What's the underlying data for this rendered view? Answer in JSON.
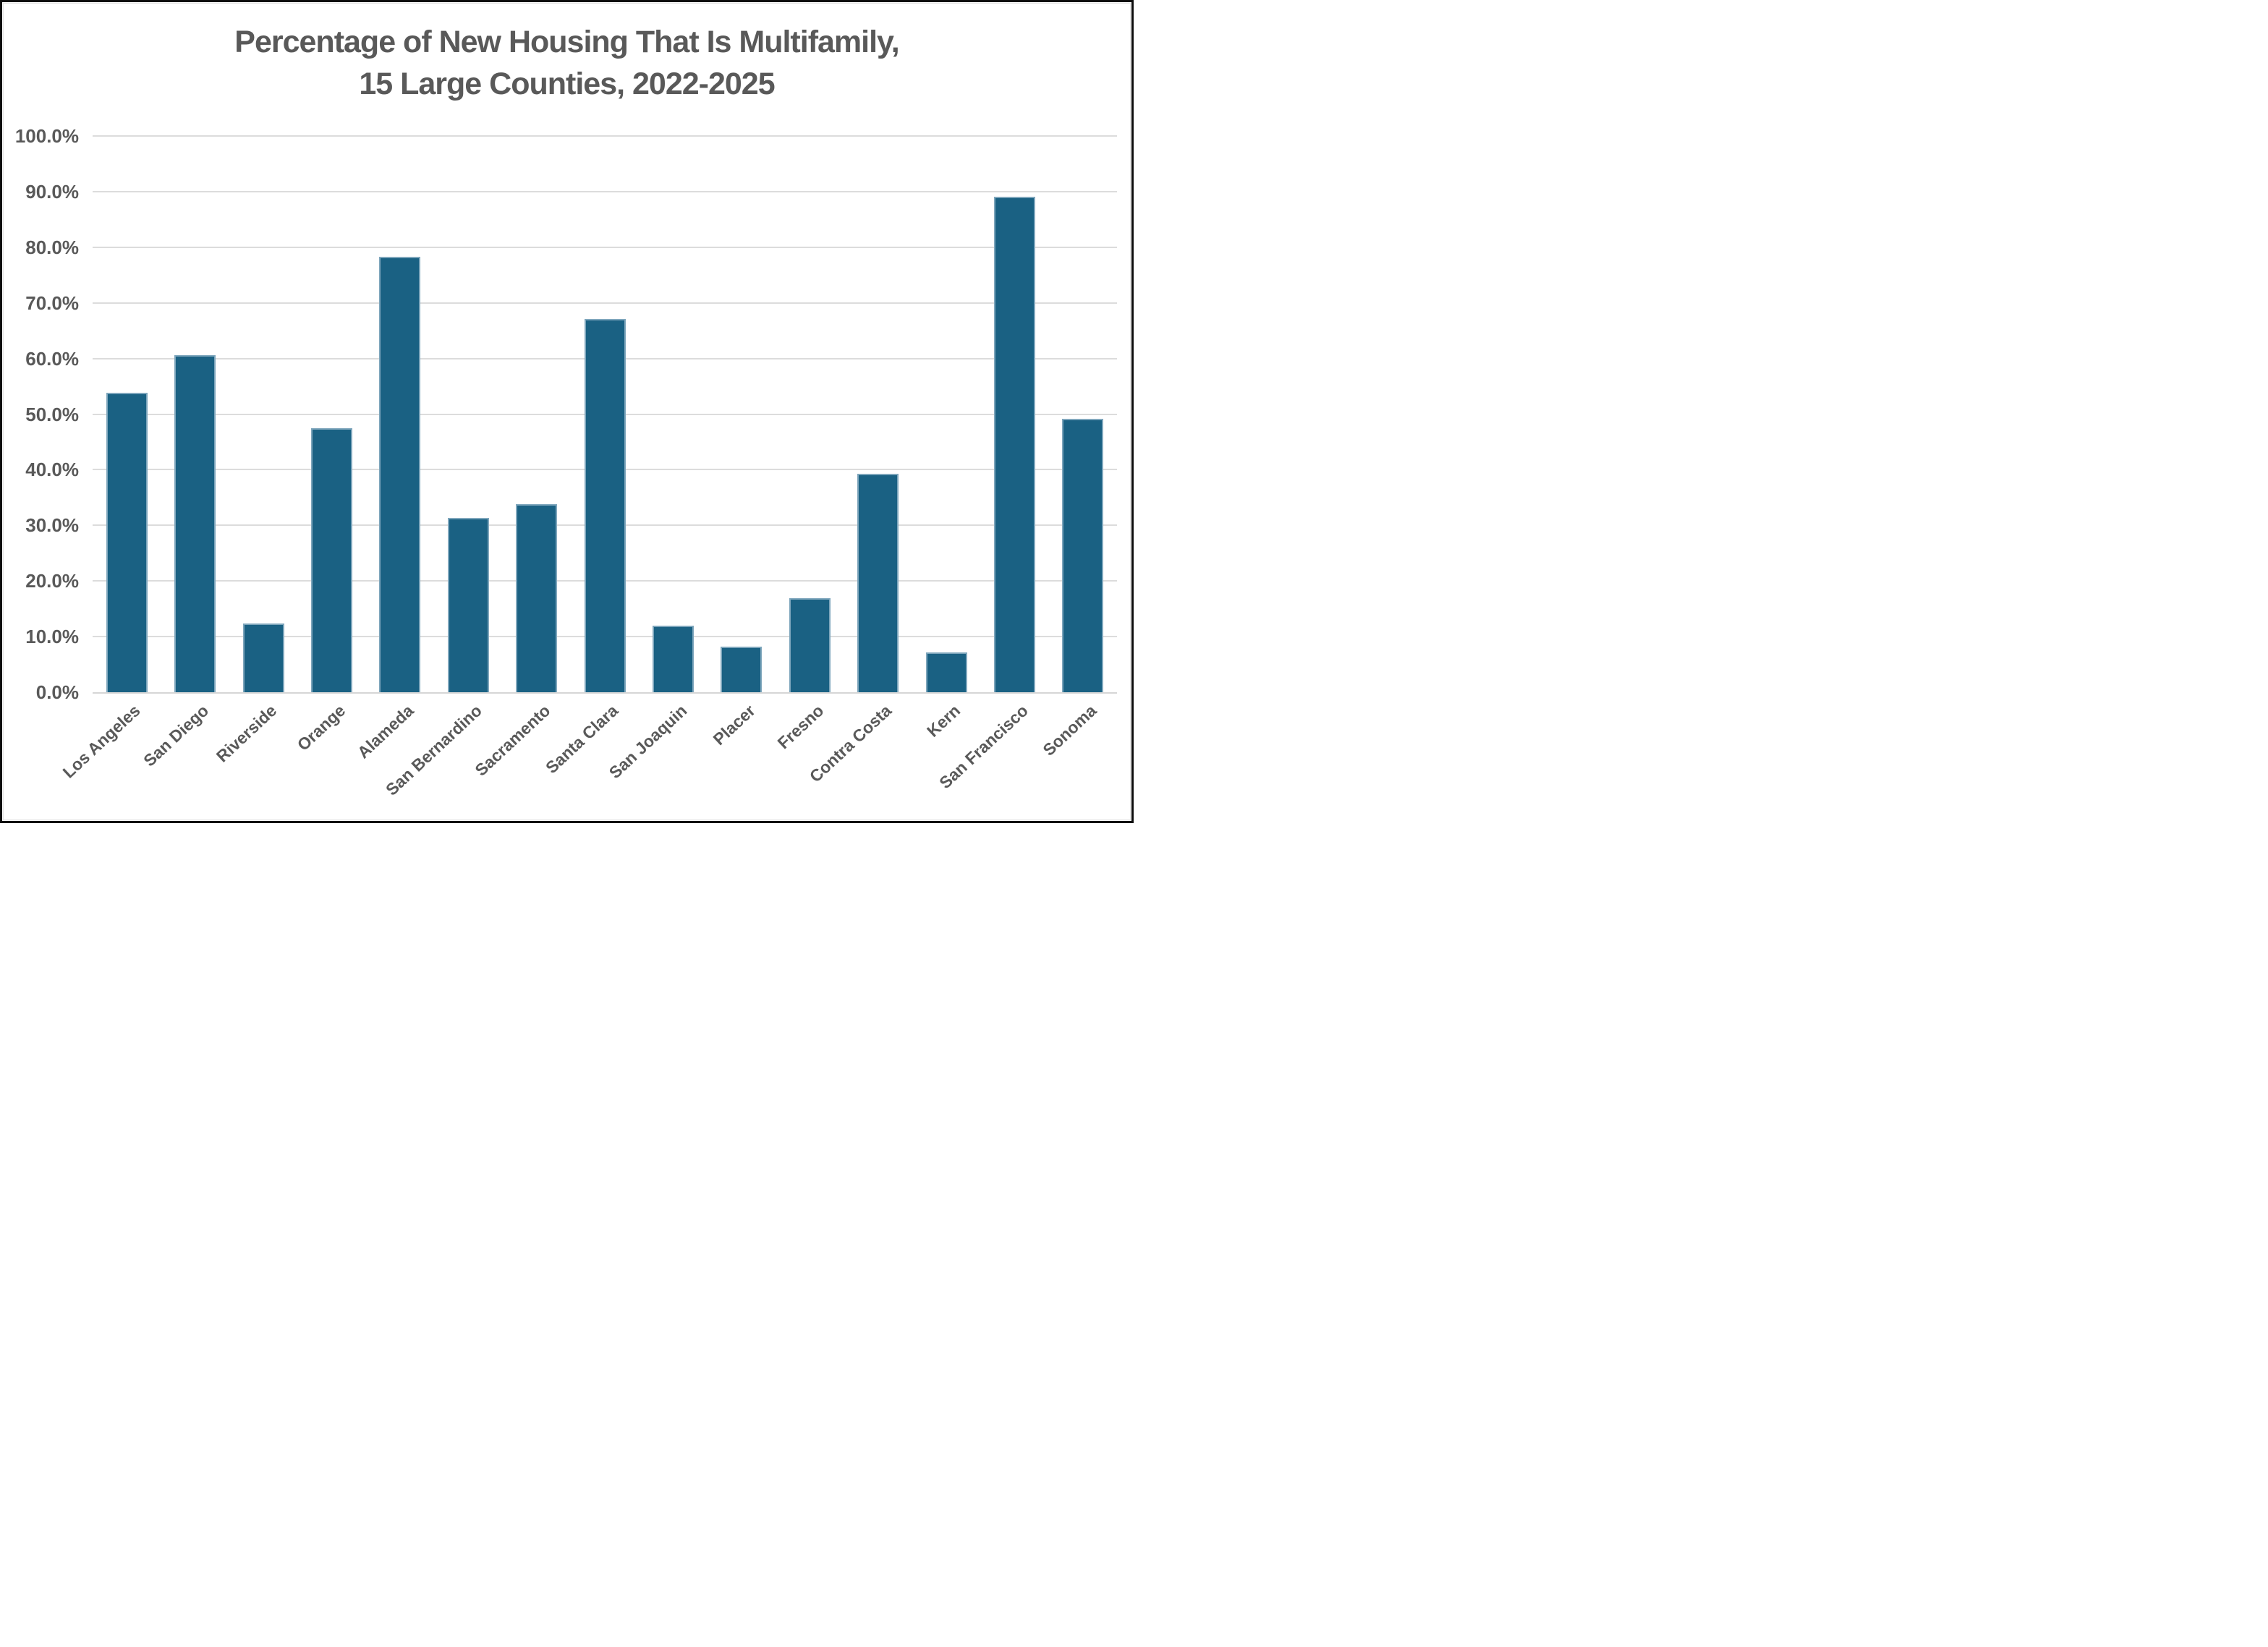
{
  "page": {
    "background": "#ffffff",
    "outer_frame_color": "#0d0d0d",
    "chart_border_color": "#e4e4e4"
  },
  "chart_data": {
    "type": "bar",
    "title_lines": [
      "Percentage of New Housing That Is Multifamily,",
      "15 Large Counties, 2022-2025"
    ],
    "categories": [
      "Los Angeles",
      "San Diego",
      "Riverside",
      "Orange",
      "Alameda",
      "San Bernardino",
      "Sacramento",
      "Santa Clara",
      "San Joaquin",
      "Placer",
      "Fresno",
      "Contra Costa",
      "Kern",
      "San Francisco",
      "Sonoma"
    ],
    "values": [
      53.9,
      60.6,
      12.4,
      47.5,
      78.3,
      31.3,
      33.8,
      67.1,
      12.0,
      8.2,
      16.9,
      39.3,
      7.2,
      89.1,
      49.2
    ],
    "ylim": [
      0,
      100
    ],
    "ytick_step": 10,
    "ytick_labels": [
      "0.0%",
      "10.0%",
      "20.0%",
      "30.0%",
      "40.0%",
      "50.0%",
      "60.0%",
      "70.0%",
      "80.0%",
      "90.0%",
      "100.0%"
    ],
    "grid": true,
    "legend": "none",
    "x_label_rotation_deg": -43,
    "bar_color": "#1a6183",
    "bar_border_color": "#7ea6bc",
    "grid_color": "#dcdcdc",
    "text_color": "#595959"
  }
}
